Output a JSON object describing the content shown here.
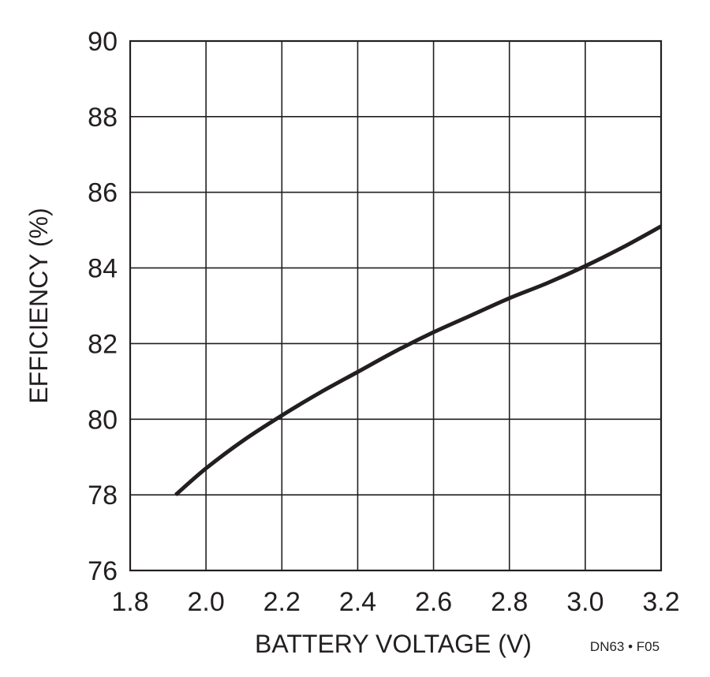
{
  "chart_data": {
    "type": "line",
    "title": "",
    "xlabel": "BATTERY VOLTAGE (V)",
    "ylabel": "EFFICIENCY (%)",
    "xlim": [
      1.8,
      3.2
    ],
    "ylim": [
      76,
      90
    ],
    "xticks": [
      "1.8",
      "2.0",
      "2.2",
      "2.4",
      "2.6",
      "2.8",
      "3.0",
      "3.2"
    ],
    "yticks": [
      "76",
      "78",
      "80",
      "82",
      "84",
      "86",
      "88",
      "90"
    ],
    "grid": true,
    "legend": "none",
    "series": [
      {
        "color": "#231f20",
        "x": [
          1.92,
          2.0,
          2.1,
          2.2,
          2.3,
          2.4,
          2.5,
          2.6,
          2.7,
          2.8,
          2.9,
          3.0,
          3.1,
          3.2
        ],
        "y": [
          78.0,
          78.7,
          79.45,
          80.1,
          80.7,
          81.25,
          81.8,
          82.3,
          82.75,
          83.2,
          83.6,
          84.05,
          84.55,
          85.1
        ]
      }
    ],
    "annotations": [
      "DN63 • F05"
    ]
  }
}
